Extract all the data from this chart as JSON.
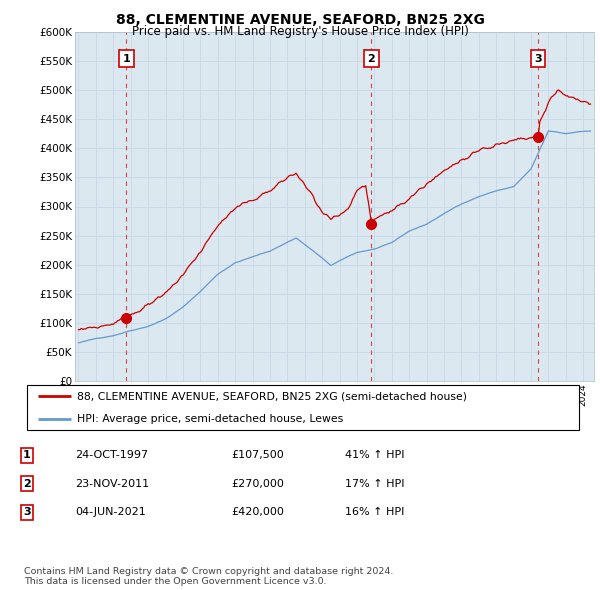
{
  "title": "88, CLEMENTINE AVENUE, SEAFORD, BN25 2XG",
  "subtitle": "Price paid vs. HM Land Registry's House Price Index (HPI)",
  "sale_prices": [
    107500,
    270000,
    420000
  ],
  "sale_labels": [
    "1",
    "2",
    "3"
  ],
  "red_line_color": "#cc0000",
  "blue_line_color": "#6699cc",
  "dashed_line_color": "#cc3333",
  "marker_color": "#cc0000",
  "grid_color": "#c8d8e8",
  "bg_color": "#dce8f0",
  "background_color": "#ffffff",
  "legend_entries": [
    "88, CLEMENTINE AVENUE, SEAFORD, BN25 2XG (semi-detached house)",
    "HPI: Average price, semi-detached house, Lewes"
  ],
  "table_rows": [
    [
      "1",
      "24-OCT-1997",
      "£107,500",
      "41% ↑ HPI"
    ],
    [
      "2",
      "23-NOV-2011",
      "£270,000",
      "17% ↑ HPI"
    ],
    [
      "3",
      "04-JUN-2021",
      "£420,000",
      "16% ↑ HPI"
    ]
  ],
  "footer": "Contains HM Land Registry data © Crown copyright and database right 2024.\nThis data is licensed under the Open Government Licence v3.0.",
  "ylim": [
    0,
    600000
  ],
  "yticks": [
    0,
    50000,
    100000,
    150000,
    200000,
    250000,
    300000,
    350000,
    400000,
    450000,
    500000,
    550000,
    600000
  ]
}
